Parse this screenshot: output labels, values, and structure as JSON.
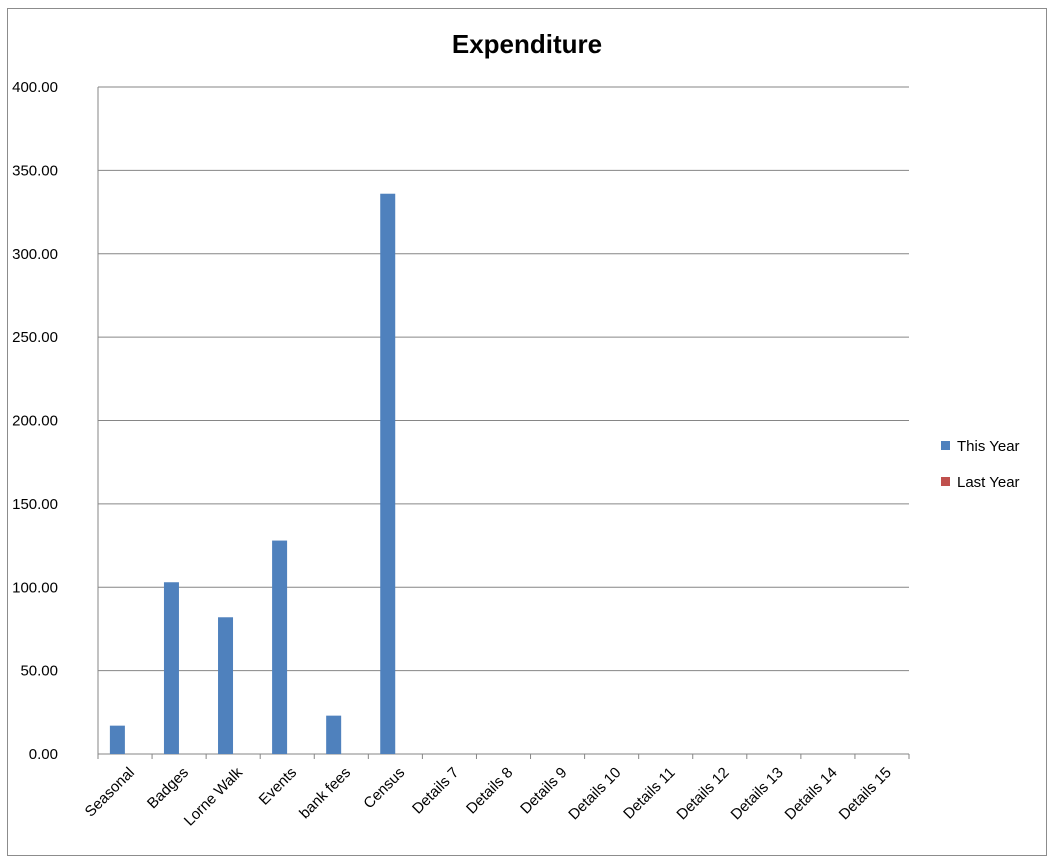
{
  "chart_data": {
    "type": "bar",
    "title": "Expenditure",
    "xlabel": "",
    "ylabel": "",
    "ylim": [
      0,
      400
    ],
    "yticks": [
      "0.00",
      "50.00",
      "100.00",
      "150.00",
      "200.00",
      "250.00",
      "300.00",
      "350.00",
      "400.00"
    ],
    "ytick_values": [
      0,
      50,
      100,
      150,
      200,
      250,
      300,
      350,
      400
    ],
    "grid": true,
    "legend_position": "right",
    "categories": [
      "Seasonal",
      "Badges",
      "Lorne Walk",
      "Events",
      "bank fees",
      "Census",
      "Details 7",
      "Details 8",
      "Details 9",
      "Details 10",
      "Details 11",
      "Details 12",
      "Details 13",
      "Details 14",
      "Details 15"
    ],
    "series": [
      {
        "name": "This Year",
        "color": "#4f81bd",
        "values": [
          17,
          103,
          82,
          128,
          23,
          336,
          0,
          0,
          0,
          0,
          0,
          0,
          0,
          0,
          0
        ]
      },
      {
        "name": "Last Year",
        "color": "#c0504d",
        "values": [
          0,
          0,
          0,
          0,
          0,
          0,
          0,
          0,
          0,
          0,
          0,
          0,
          0,
          0,
          0
        ]
      }
    ]
  }
}
